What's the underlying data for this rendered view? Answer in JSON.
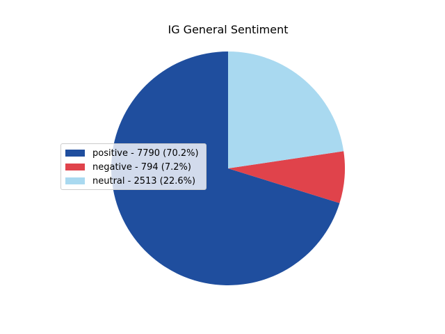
{
  "chart_data": {
    "type": "pie",
    "title": "IG General Sentiment",
    "start_angle_deg": 90,
    "direction": "counterclockwise",
    "slices": [
      {
        "name": "positive",
        "value": 7790,
        "percent": 70.2,
        "label": "positive - 7790 (70.2%)",
        "color": "#1f4e9e"
      },
      {
        "name": "negative",
        "value": 794,
        "percent": 7.2,
        "label": "negative - 794 (7.2%)",
        "color": "#e0434b"
      },
      {
        "name": "neutral",
        "value": 2513,
        "percent": 22.6,
        "label": "neutral - 2513 (22.6%)",
        "color": "#a9d9f0"
      }
    ],
    "legend_position": "center-left"
  }
}
